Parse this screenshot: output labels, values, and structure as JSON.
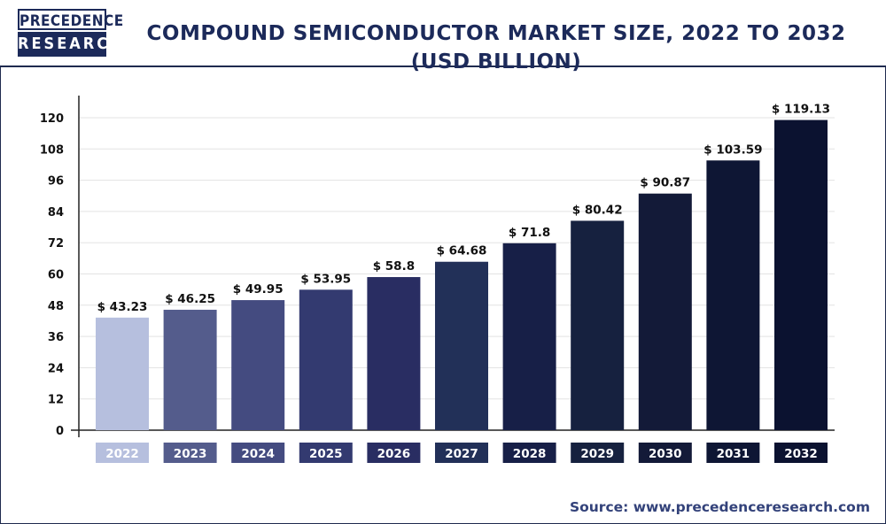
{
  "header": {
    "logo_line1": "PRECEDENCE",
    "logo_line2": "RESEARCH",
    "title": "COMPOUND SEMICONDUCTOR MARKET SIZE, 2022 TO 2032 (USD BILLION)"
  },
  "footer": {
    "source": "Source: www.precedenceresearch.com"
  },
  "colors": {
    "brand": "#1c2a5a",
    "grid": "#e3e3e3",
    "axis": "#222222"
  },
  "chart_data": {
    "type": "bar",
    "title": "COMPOUND SEMICONDUCTOR MARKET SIZE, 2022 TO 2032 (USD BILLION)",
    "xlabel": "",
    "ylabel": "",
    "categories": [
      "2022",
      "2023",
      "2024",
      "2025",
      "2026",
      "2027",
      "2028",
      "2029",
      "2030",
      "2031",
      "2032"
    ],
    "values": [
      43.23,
      46.25,
      49.95,
      53.95,
      58.8,
      64.68,
      71.8,
      80.42,
      90.87,
      103.59,
      119.13
    ],
    "data_labels": [
      "$ 43.23",
      "$ 46.25",
      "$ 49.95",
      "$ 53.95",
      "$ 58.8",
      "$ 64.68",
      "$ 71.8",
      "$ 80.42",
      "$ 90.87",
      "$ 103.59",
      "$ 119.13"
    ],
    "bar_colors": [
      "#b6bfde",
      "#545c8c",
      "#444b80",
      "#333a70",
      "#292d62",
      "#223058",
      "#171f47",
      "#16213f",
      "#131a38",
      "#0e1634",
      "#0b1230"
    ],
    "yticks": [
      0,
      12,
      24,
      36,
      48,
      60,
      72,
      84,
      96,
      108,
      120
    ],
    "ylim": [
      0,
      128
    ],
    "grid": true,
    "legend": "none"
  }
}
